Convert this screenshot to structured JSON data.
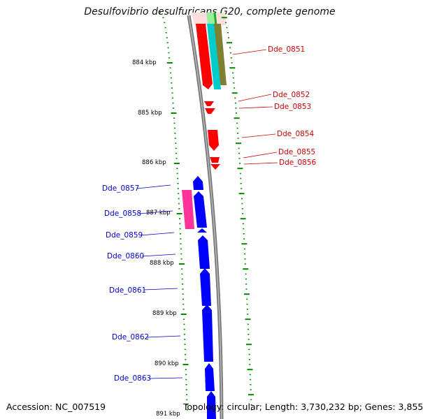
{
  "header": {
    "title": "Desulfovibrio desulfuricans G20, complete genome"
  },
  "footer": {
    "accession": "Accession: NC_007519",
    "topology": "Topology: circular; Length: 3,730,232 bp; Genes: 3,855"
  },
  "colors": {
    "forward_label": "#cc0000",
    "reverse_label": "#0000cc",
    "forward_gene": "#ff0000",
    "reverse_gene": "#0000ff",
    "pink_feature": "#ff3399",
    "cyan_feature": "#00cccc",
    "olive_feature": "#808033",
    "light_green_feature": "#99ee99",
    "ticks": "#008800",
    "backbone": "#888888"
  },
  "scale_labels": [
    "884 kbp",
    "885 kbp",
    "886 kbp",
    "887 kbp",
    "888 kbp",
    "889 kbp",
    "890 kbp",
    "891 kbp"
  ],
  "forward_genes": [
    {
      "label": "Dde_0851"
    },
    {
      "label": "Dde_0852"
    },
    {
      "label": "Dde_0853"
    },
    {
      "label": "Dde_0854"
    },
    {
      "label": "Dde_0855"
    },
    {
      "label": "Dde_0856"
    }
  ],
  "reverse_genes": [
    {
      "label": "Dde_0857"
    },
    {
      "label": "Dde_0858"
    },
    {
      "label": "Dde_0859"
    },
    {
      "label": "Dde_0860"
    },
    {
      "label": "Dde_0861"
    },
    {
      "label": "Dde_0862"
    },
    {
      "label": "Dde_0863"
    }
  ]
}
